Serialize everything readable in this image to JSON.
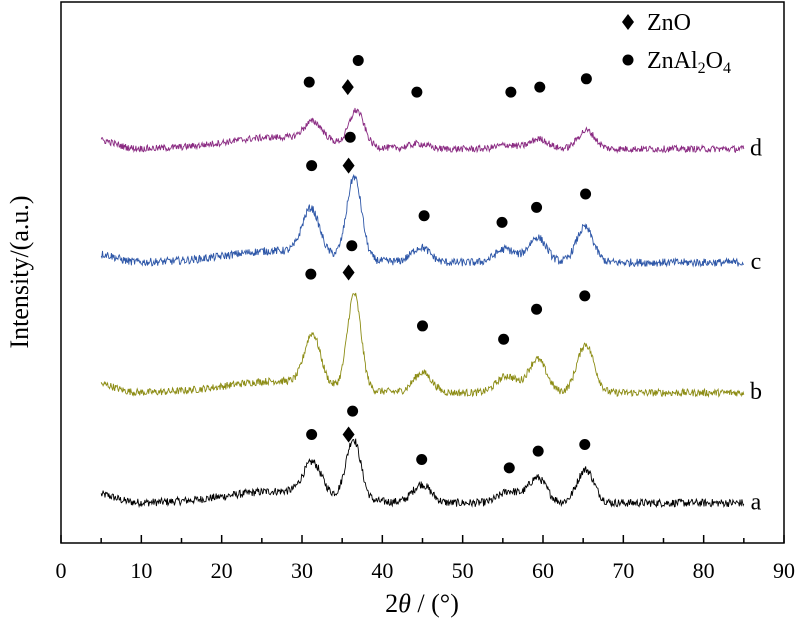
{
  "chart_data": {
    "type": "line",
    "xlabel": {
      "prefix": "2",
      "var": "θ",
      "suffix": " / (°)"
    },
    "ylabel": "Intensity/(a.u.)",
    "xlim": [
      0,
      90
    ],
    "x_ticks": [
      0,
      10,
      20,
      30,
      40,
      50,
      60,
      70,
      80,
      90
    ],
    "y_ticks_shown": false,
    "grid": false,
    "legend": {
      "position": "top-right",
      "entries": [
        {
          "marker": "diamond",
          "parts": [
            {
              "t": "ZnO"
            }
          ]
        },
        {
          "marker": "circle",
          "parts": [
            {
              "t": "ZnAl"
            },
            {
              "t": "2",
              "sub": true
            },
            {
              "t": "O"
            },
            {
              "t": "4",
              "sub": true
            }
          ]
        }
      ]
    },
    "series": [
      {
        "label": "a",
        "color": "#000000",
        "baseline": 0.0,
        "x_range": [
          5,
          85
        ],
        "noise": 0.12,
        "peaks": [
          {
            "x": 31.3,
            "h": 0.95,
            "w": 1.6
          },
          {
            "x": 36.4,
            "h": 1.8,
            "w": 1.3
          },
          {
            "x": 44.9,
            "h": 0.55,
            "w": 1.6
          },
          {
            "x": 55.8,
            "h": 0.35,
            "w": 1.8
          },
          {
            "x": 59.3,
            "h": 0.75,
            "w": 1.6
          },
          {
            "x": 65.3,
            "h": 1.0,
            "w": 1.5
          }
        ],
        "markers": [
          {
            "type": "circle",
            "x": 31.2,
            "y": 2.05
          },
          {
            "type": "diamond",
            "x": 35.8,
            "y": 2.05
          },
          {
            "type": "circle",
            "x": 36.3,
            "y": 2.75
          },
          {
            "type": "circle",
            "x": 44.9,
            "y": 1.3
          },
          {
            "type": "circle",
            "x": 55.8,
            "y": 1.05
          },
          {
            "type": "circle",
            "x": 59.4,
            "y": 1.55
          },
          {
            "type": "circle",
            "x": 65.2,
            "y": 1.75
          }
        ]
      },
      {
        "label": "b",
        "color": "#8c8c14",
        "baseline": 3.3,
        "x_range": [
          5,
          85
        ],
        "noise": 0.11,
        "peaks": [
          {
            "x": 31.3,
            "h": 1.5,
            "w": 1.4
          },
          {
            "x": 36.5,
            "h": 2.85,
            "w": 1.2
          },
          {
            "x": 45.0,
            "h": 0.6,
            "w": 1.6
          },
          {
            "x": 55.5,
            "h": 0.5,
            "w": 1.8
          },
          {
            "x": 59.3,
            "h": 1.0,
            "w": 1.6
          },
          {
            "x": 65.3,
            "h": 1.45,
            "w": 1.5
          }
        ],
        "markers": [
          {
            "type": "circle",
            "x": 31.1,
            "y": 6.85
          },
          {
            "type": "diamond",
            "x": 35.8,
            "y": 6.9
          },
          {
            "type": "circle",
            "x": 36.2,
            "y": 7.7
          },
          {
            "type": "circle",
            "x": 45.0,
            "y": 5.3
          },
          {
            "type": "circle",
            "x": 55.1,
            "y": 4.9
          },
          {
            "type": "circle",
            "x": 59.2,
            "y": 5.8
          },
          {
            "type": "circle",
            "x": 65.2,
            "y": 6.2
          }
        ]
      },
      {
        "label": "c",
        "color": "#2e57a8",
        "baseline": 7.2,
        "x_range": [
          5,
          85
        ],
        "noise": 0.12,
        "peaks": [
          {
            "x": 31.1,
            "h": 1.35,
            "w": 1.5
          },
          {
            "x": 36.5,
            "h": 2.45,
            "w": 1.3
          },
          {
            "x": 44.8,
            "h": 0.45,
            "w": 1.6
          },
          {
            "x": 55.3,
            "h": 0.4,
            "w": 1.8
          },
          {
            "x": 59.3,
            "h": 0.75,
            "w": 1.6
          },
          {
            "x": 65.2,
            "h": 1.05,
            "w": 1.5
          }
        ],
        "markers": [
          {
            "type": "circle",
            "x": 31.2,
            "y": 10.1
          },
          {
            "type": "diamond",
            "x": 35.8,
            "y": 10.1
          },
          {
            "type": "circle",
            "x": 36.0,
            "y": 10.95
          },
          {
            "type": "circle",
            "x": 45.2,
            "y": 8.6
          },
          {
            "type": "circle",
            "x": 54.9,
            "y": 8.4
          },
          {
            "type": "circle",
            "x": 59.2,
            "y": 8.85
          },
          {
            "type": "circle",
            "x": 65.3,
            "y": 9.25
          }
        ]
      },
      {
        "label": "d",
        "color": "#8a2a82",
        "baseline": 10.6,
        "x_range": [
          5,
          85
        ],
        "noise": 0.1,
        "peaks": [
          {
            "x": 31.4,
            "h": 0.55,
            "w": 1.6
          },
          {
            "x": 36.8,
            "h": 1.05,
            "w": 1.3
          },
          {
            "x": 44.5,
            "h": 0.15,
            "w": 1.6
          },
          {
            "x": 55.5,
            "h": 0.12,
            "w": 1.8
          },
          {
            "x": 59.5,
            "h": 0.3,
            "w": 1.6
          },
          {
            "x": 65.4,
            "h": 0.55,
            "w": 1.5
          }
        ],
        "markers": [
          {
            "type": "circle",
            "x": 30.9,
            "y": 12.6
          },
          {
            "type": "diamond",
            "x": 35.7,
            "y": 12.45
          },
          {
            "type": "circle",
            "x": 37.0,
            "y": 13.25
          },
          {
            "type": "circle",
            "x": 44.3,
            "y": 12.3
          },
          {
            "type": "circle",
            "x": 56.0,
            "y": 12.3
          },
          {
            "type": "circle",
            "x": 59.6,
            "y": 12.45
          },
          {
            "type": "circle",
            "x": 65.4,
            "y": 12.7
          }
        ]
      }
    ],
    "ylim": [
      -1.2,
      15.0
    ]
  }
}
